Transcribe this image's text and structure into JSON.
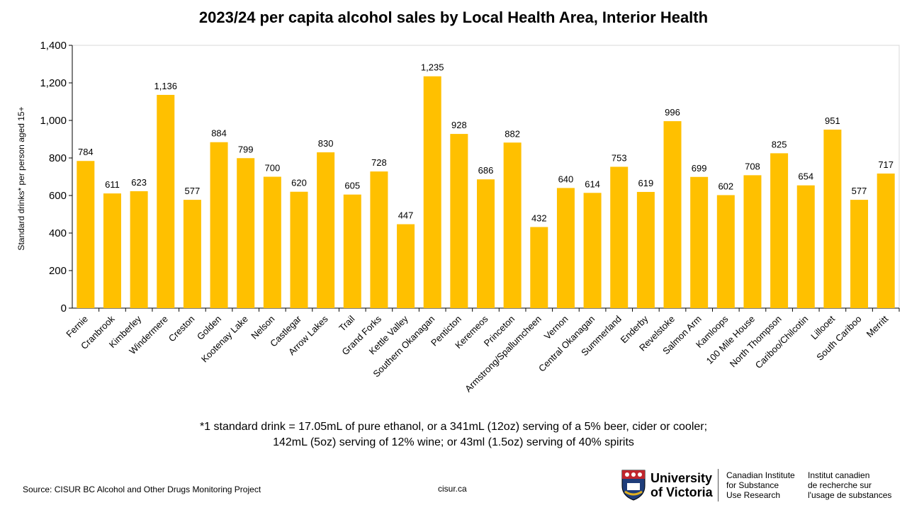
{
  "chart_data": {
    "type": "bar",
    "title": "2023/24 per capita alcohol sales by Local Health Area, Interior Health",
    "ylabel": "Standard drinks* per person aged 15+",
    "xlabel": "",
    "ylim": [
      0,
      1400
    ],
    "yticks": [
      "0",
      "200",
      "400",
      "600",
      "800",
      "1,000",
      "1,200",
      "1,400"
    ],
    "grid": false,
    "bar_color": "#FFC000",
    "categories": [
      "Fernie",
      "Cranbrook",
      "Kimberley",
      "Windermere",
      "Creston",
      "Golden",
      "Kootenay Lake",
      "Nelson",
      "Castlegar",
      "Arrow Lakes",
      "Trail",
      "Grand Forks",
      "Kettle Valley",
      "Southern Okanagan",
      "Penticton",
      "Keremeos",
      "Princeton",
      "Armstrong/Spallumcheen",
      "Vernon",
      "Central Okanagan",
      "Summerland",
      "Enderby",
      "Revelstoke",
      "Salmon Arm",
      "Kamloops",
      "100 Mile House",
      "North Thompson",
      "Cariboo/Chilcotin",
      "Lillooet",
      "South Cariboo",
      "Merritt"
    ],
    "values": [
      784,
      611,
      623,
      1136,
      577,
      884,
      799,
      700,
      620,
      830,
      605,
      728,
      447,
      1235,
      928,
      686,
      882,
      432,
      640,
      614,
      753,
      619,
      996,
      699,
      602,
      708,
      825,
      654,
      951,
      577,
      717
    ],
    "value_labels": [
      "784",
      "611",
      "623",
      "1,136",
      "577",
      "884",
      "799",
      "700",
      "620",
      "830",
      "605",
      "728",
      "447",
      "1,235",
      "928",
      "686",
      "882",
      "432",
      "640",
      "614",
      "753",
      "619",
      "996",
      "699",
      "602",
      "708",
      "825",
      "654",
      "951",
      "577",
      "717"
    ]
  },
  "footnote": {
    "line1": "*1 standard drink = 17.05mL of pure ethanol, or a 341mL (12oz) serving of a 5% beer, cider or cooler;",
    "line2": "142mL (5oz) serving of 12% wine; or 43ml (1.5oz) serving of 40% spirits"
  },
  "source": "Source: CISUR BC Alcohol and Other Drugs Monitoring Project",
  "site": "cisur.ca",
  "logo": {
    "university_line1": "University",
    "university_line2": "of Victoria",
    "en_line1": "Canadian Institute",
    "en_line2": "for Substance",
    "en_line3": "Use Research",
    "fr_line1": "Institut canadien",
    "fr_line2": "de recherche sur",
    "fr_line3": "l'usage de substances"
  },
  "colors": {
    "bar": "#FFC000",
    "crest_blue": "#1f3d7a",
    "crest_red": "#c0262d",
    "crest_gold": "#e0b020"
  }
}
